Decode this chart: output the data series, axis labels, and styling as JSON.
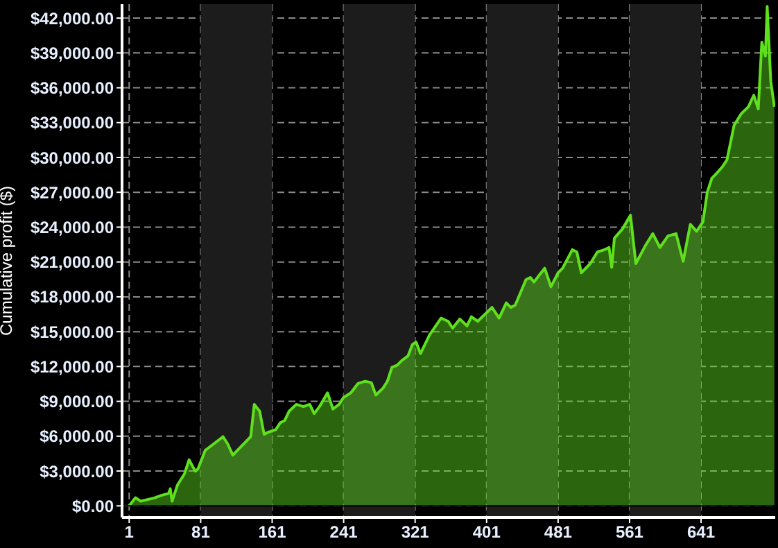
{
  "chart_data": {
    "type": "area",
    "ylabel": "Cumulative profit ($)",
    "x": [
      1,
      8,
      14,
      29,
      37,
      45,
      47,
      49,
      55,
      63,
      68,
      75,
      78,
      86,
      96,
      106,
      111,
      117,
      122,
      132,
      137,
      141,
      147,
      152,
      157,
      165,
      170,
      175,
      180,
      188,
      196,
      203,
      208,
      214,
      223,
      229,
      236,
      241,
      249,
      257,
      265,
      272,
      277,
      285,
      290,
      295,
      301,
      306,
      313,
      318,
      322,
      327,
      337,
      350,
      358,
      363,
      371,
      379,
      384,
      391,
      407,
      415,
      423,
      428,
      433,
      445,
      450,
      454,
      460,
      466,
      473,
      481,
      486,
      497,
      502,
      507,
      517,
      525,
      533,
      538,
      541,
      544,
      553,
      562,
      568,
      579,
      587,
      595,
      604,
      613,
      621,
      629,
      636,
      643,
      648,
      653,
      658,
      665,
      670,
      678,
      686,
      694,
      700,
      705,
      709,
      713,
      715,
      719,
      723
    ],
    "series": [
      {
        "color": "#5fe01c",
        "values": [
          0,
          700,
          400,
          680,
          900,
          1070,
          1470,
          400,
          1790,
          2780,
          3970,
          2980,
          3180,
          4770,
          5360,
          5960,
          5360,
          4370,
          4770,
          5560,
          5960,
          8740,
          8150,
          6160,
          6360,
          6560,
          7150,
          7350,
          8150,
          8740,
          8550,
          8740,
          7950,
          8550,
          9730,
          8340,
          8740,
          9340,
          9730,
          10530,
          10730,
          10610,
          9540,
          10130,
          10730,
          11920,
          12120,
          12510,
          12910,
          13900,
          14110,
          13110,
          14700,
          16170,
          15890,
          15300,
          16090,
          15500,
          16290,
          15890,
          17090,
          16170,
          17480,
          17090,
          17280,
          19470,
          19670,
          19270,
          19870,
          20460,
          18870,
          20070,
          20460,
          22060,
          21860,
          20070,
          20860,
          21860,
          22060,
          22250,
          20540,
          23050,
          23840,
          25030,
          20860,
          22450,
          23440,
          22250,
          23240,
          23440,
          21060,
          24240,
          23640,
          24430,
          27020,
          28200,
          28610,
          29210,
          29800,
          32780,
          33770,
          34370,
          35360,
          34170,
          39930,
          38740,
          43000,
          36560,
          34370
        ]
      }
    ],
    "xlim": [
      -7,
      724
    ],
    "xticks": [
      1,
      81,
      161,
      241,
      321,
      401,
      481,
      561,
      641
    ],
    "ylim": [
      -1000,
      43200
    ],
    "yticks": [
      {
        "value": 0,
        "label": "$0.00"
      },
      {
        "value": 3000,
        "label": "$3,000.00"
      },
      {
        "value": 6000,
        "label": "$6,000.00"
      },
      {
        "value": 9000,
        "label": "$9,000.00"
      },
      {
        "value": 12000,
        "label": "$12,000.00"
      },
      {
        "value": 15000,
        "label": "$15,000.00"
      },
      {
        "value": 18000,
        "label": "$18,000.00"
      },
      {
        "value": 21000,
        "label": "$21,000.00"
      },
      {
        "value": 24000,
        "label": "$24,000.00"
      },
      {
        "value": 27000,
        "label": "$27,000.00"
      },
      {
        "value": 30000,
        "label": "$30,000.00"
      },
      {
        "value": 33000,
        "label": "$33,000.00"
      },
      {
        "value": 36000,
        "label": "$36,000.00"
      },
      {
        "value": 39000,
        "label": "$39,000.00"
      },
      {
        "value": 42000,
        "label": "$42,000.00"
      }
    ],
    "bands": [
      {
        "axis": "x",
        "from": 81,
        "to": 161,
        "color": "#1c1c1c"
      },
      {
        "axis": "x",
        "from": 241,
        "to": 321,
        "color": "#1c1c1c"
      },
      {
        "axis": "x",
        "from": 401,
        "to": 481,
        "color": "#1c1c1c"
      },
      {
        "axis": "x",
        "from": 561,
        "to": 641,
        "color": "#1c1c1c"
      }
    ],
    "grid": true
  }
}
